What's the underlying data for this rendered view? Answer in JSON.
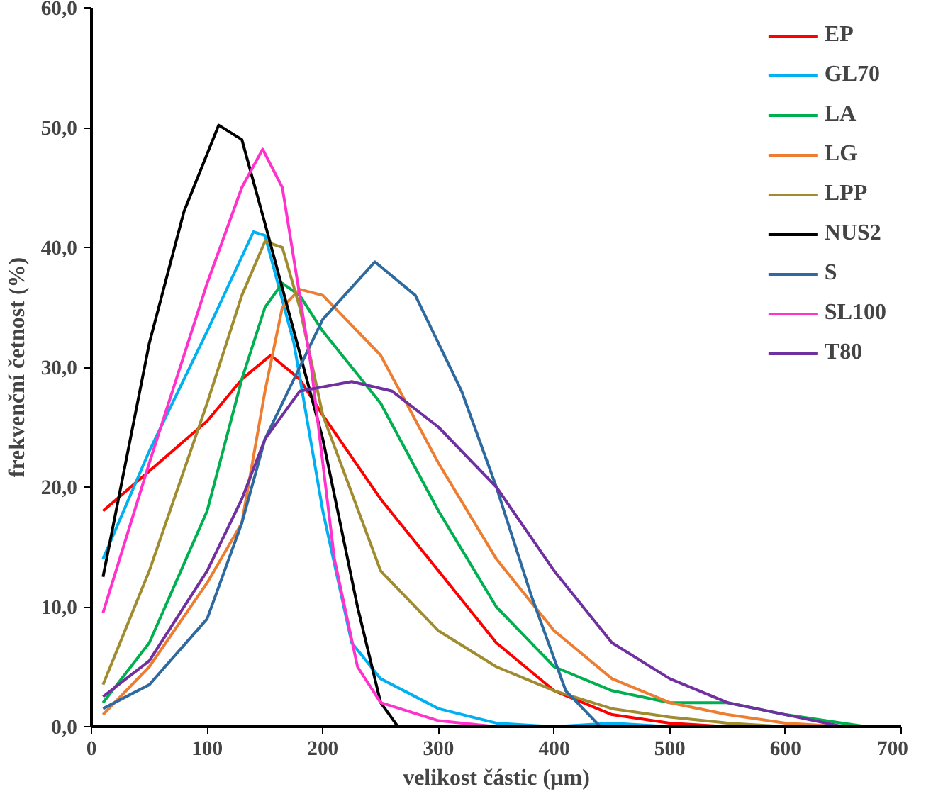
{
  "chart_data": {
    "type": "line",
    "xlabel": "velikost částic (µm)",
    "ylabel": "frekvenční četnost (%)",
    "xlim": [
      0,
      700
    ],
    "xticks": [
      0,
      100,
      200,
      300,
      400,
      500,
      600,
      700
    ],
    "ylim": [
      0,
      60
    ],
    "yticks": [
      {
        "value": 0,
        "label": "0,0"
      },
      {
        "value": 10,
        "label": "10,0"
      },
      {
        "value": 20,
        "label": "20,0"
      },
      {
        "value": 30,
        "label": "30,0"
      },
      {
        "value": 40,
        "label": "40,0"
      },
      {
        "value": 50,
        "label": "50,0"
      },
      {
        "value": 60,
        "label": "60,0"
      }
    ],
    "grid": false,
    "legend": "top right",
    "marker": "none",
    "line_style": "solid",
    "series": [
      {
        "name": "EP",
        "color": "#ff0000",
        "x": [
          10,
          100,
          130,
          155,
          180,
          200,
          250,
          300,
          350,
          400,
          450,
          500,
          550
        ],
        "values": [
          18,
          25.5,
          29,
          31,
          29,
          26,
          19,
          13,
          7,
          3,
          1,
          0.3,
          0
        ]
      },
      {
        "name": "GL70",
        "color": "#00b0f0",
        "x": [
          10,
          50,
          100,
          140,
          150,
          175,
          200,
          225,
          250,
          300,
          350,
          400,
          450,
          500
        ],
        "values": [
          14,
          23,
          33,
          41.3,
          41,
          32,
          18,
          7,
          4,
          1.5,
          0.3,
          0,
          0.3,
          0
        ]
      },
      {
        "name": "LA",
        "color": "#00b050",
        "x": [
          10,
          50,
          100,
          130,
          150,
          165,
          180,
          200,
          250,
          300,
          350,
          400,
          450,
          500,
          550,
          600,
          670
        ],
        "values": [
          2,
          7,
          18,
          29,
          35,
          37,
          36,
          33,
          27,
          18,
          10,
          5,
          3,
          2,
          2,
          1,
          0
        ]
      },
      {
        "name": "LG",
        "color": "#ed7d31",
        "x": [
          10,
          50,
          100,
          130,
          150,
          165,
          180,
          200,
          250,
          300,
          350,
          400,
          450,
          500,
          550,
          600,
          650
        ],
        "values": [
          1,
          5,
          12,
          17,
          28,
          35,
          36.5,
          36,
          31,
          22,
          14,
          8,
          4,
          2,
          1,
          0.3,
          0
        ]
      },
      {
        "name": "LPP",
        "color": "#a08c30",
        "x": [
          10,
          50,
          100,
          130,
          150,
          165,
          180,
          200,
          250,
          300,
          350,
          400,
          450,
          500,
          550,
          600
        ],
        "values": [
          3.5,
          13,
          27,
          36,
          40.5,
          40,
          35,
          26,
          13,
          8,
          5,
          3,
          1.5,
          0.8,
          0.3,
          0
        ]
      },
      {
        "name": "NUS2",
        "color": "#000000",
        "x": [
          10,
          50,
          80,
          110,
          130,
          150,
          200,
          230,
          250,
          265
        ],
        "values": [
          12.5,
          32,
          43,
          50.2,
          49,
          42,
          24,
          10,
          2,
          0
        ]
      },
      {
        "name": "S",
        "color": "#2e6a9f",
        "x": [
          10,
          50,
          100,
          130,
          150,
          180,
          200,
          245,
          280,
          320,
          350,
          380,
          410,
          440,
          500
        ],
        "values": [
          1.5,
          3.5,
          9,
          17,
          24,
          30,
          34,
          38.8,
          36,
          28,
          20,
          11,
          3,
          0,
          0
        ]
      },
      {
        "name": "SL100",
        "color": "#ff33cc",
        "x": [
          10,
          50,
          100,
          130,
          148,
          165,
          190,
          210,
          230,
          250,
          300,
          350
        ],
        "values": [
          9.5,
          22,
          37,
          45,
          48.2,
          45,
          30,
          14,
          5,
          2,
          0.5,
          0
        ]
      },
      {
        "name": "T80",
        "color": "#7030a0",
        "x": [
          10,
          50,
          100,
          130,
          150,
          180,
          225,
          260,
          300,
          350,
          400,
          450,
          500,
          550,
          600,
          650
        ],
        "values": [
          2.5,
          5.5,
          13,
          19,
          24,
          28,
          28.8,
          28,
          25,
          20,
          13,
          7,
          4,
          2,
          1,
          0
        ]
      }
    ]
  }
}
